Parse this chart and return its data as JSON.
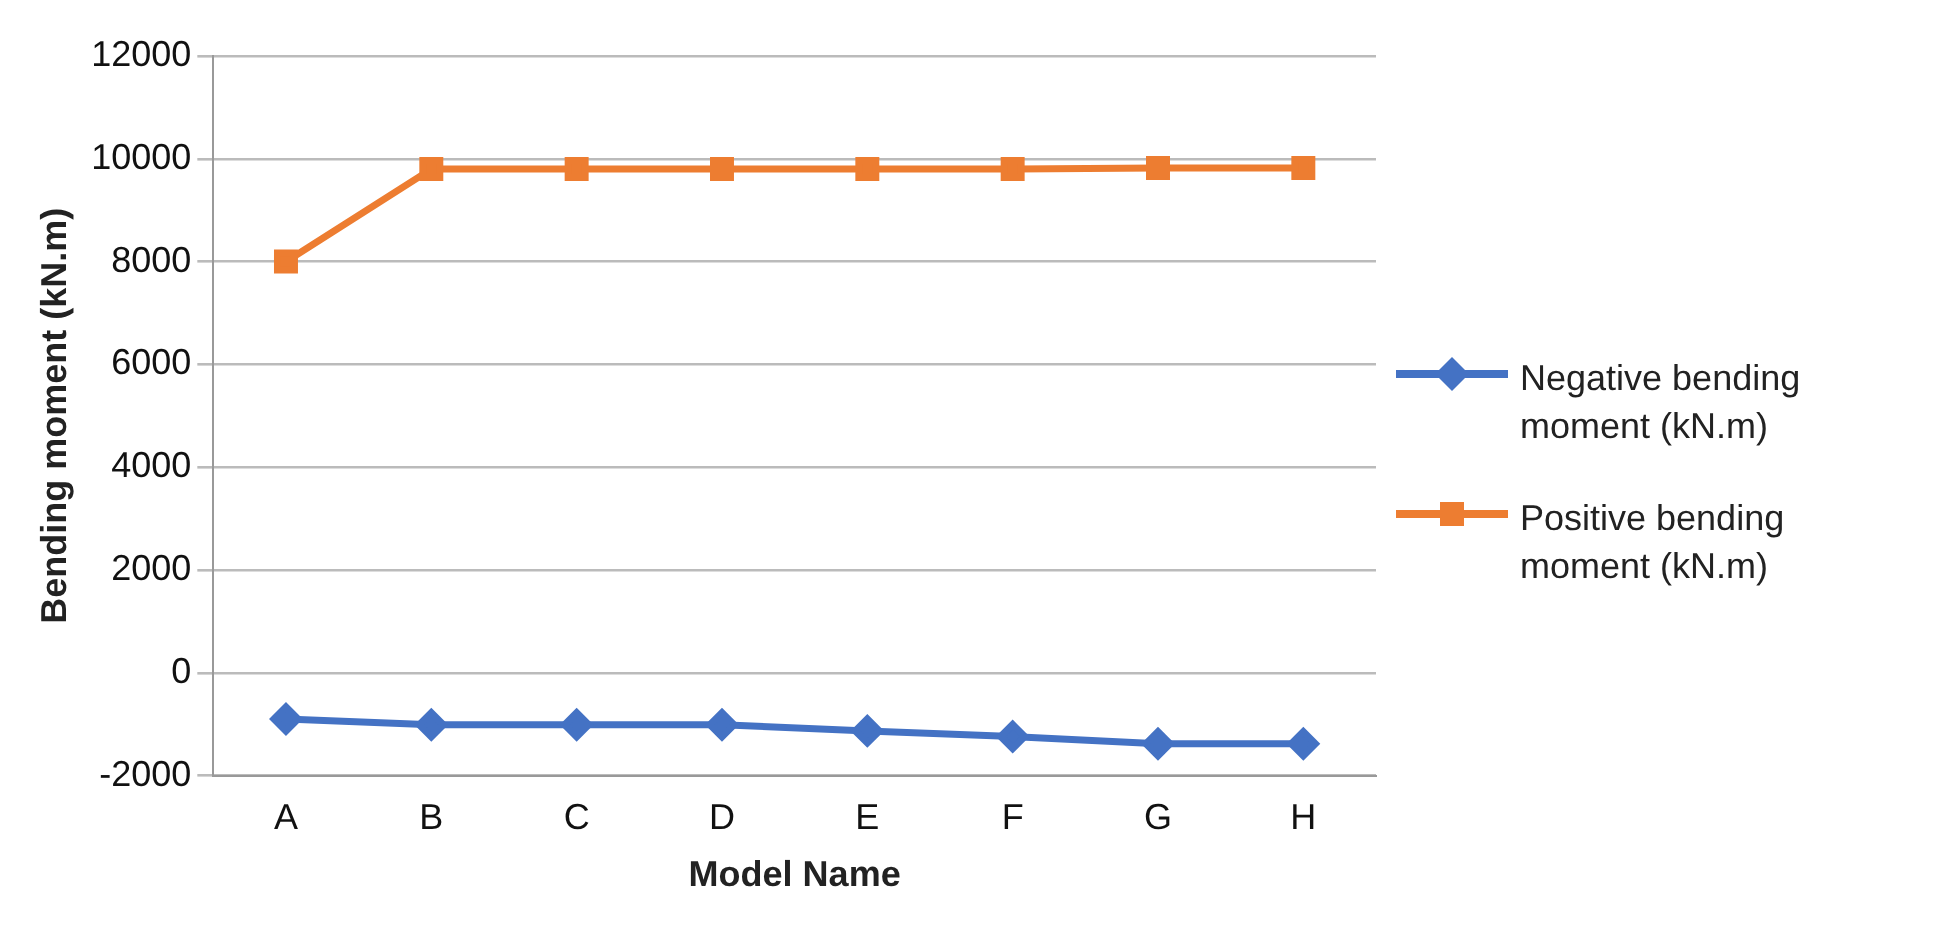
{
  "chart_data": {
    "type": "line",
    "xlabel": "Model Name",
    "ylabel": "Bending moment (kN.m)",
    "categories": [
      "A",
      "B",
      "C",
      "D",
      "E",
      "F",
      "G",
      "H"
    ],
    "series": [
      {
        "name": "Negative bending moment (kN.m)",
        "color": "#4472c4",
        "marker": "diamond",
        "values": [
          -900,
          -1010,
          -1010,
          -1010,
          -1130,
          -1240,
          -1380,
          -1380
        ]
      },
      {
        "name": "Positive bending moment (kN.m)",
        "color": "#ed7d31",
        "marker": "square",
        "values": [
          8000,
          9800,
          9800,
          9800,
          9800,
          9800,
          9820,
          9820
        ]
      }
    ],
    "ylim": [
      -2000,
      12000
    ],
    "yticks": [
      -2000,
      0,
      2000,
      4000,
      6000,
      8000,
      10000,
      12000
    ],
    "grid": "y",
    "legend": "right"
  }
}
